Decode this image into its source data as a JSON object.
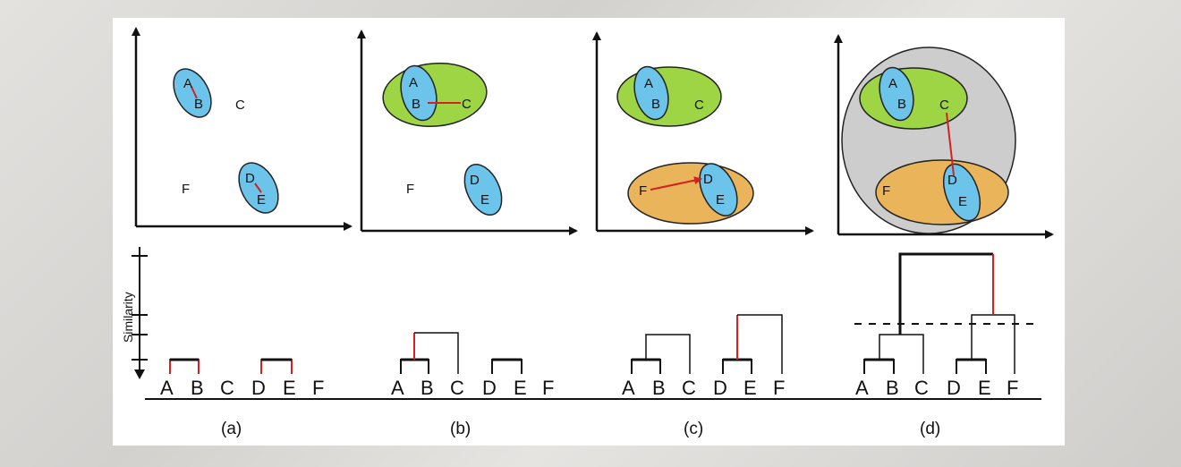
{
  "figure": {
    "y_axis_label": "Similarity",
    "leaves": [
      "A",
      "B",
      "C",
      "D",
      "E",
      "F"
    ],
    "panels": [
      {
        "caption": "(a)",
        "points": [
          "A",
          "B",
          "C",
          "D",
          "E",
          "F"
        ]
      },
      {
        "caption": "(b)",
        "points": [
          "A",
          "B",
          "C",
          "D",
          "E",
          "F"
        ]
      },
      {
        "caption": "(c)",
        "points": [
          "A",
          "B",
          "C",
          "D",
          "E",
          "F"
        ]
      },
      {
        "caption": "(d)",
        "points": [
          "A",
          "B",
          "C",
          "D",
          "E",
          "F"
        ]
      }
    ],
    "colors": {
      "blue_cluster": "#6cc4ea",
      "green_cluster": "#9ed544",
      "orange_cluster": "#eab45a",
      "gray_cluster": "#cdcdcd",
      "link_red": "#d42020",
      "ink": "#111111"
    }
  }
}
